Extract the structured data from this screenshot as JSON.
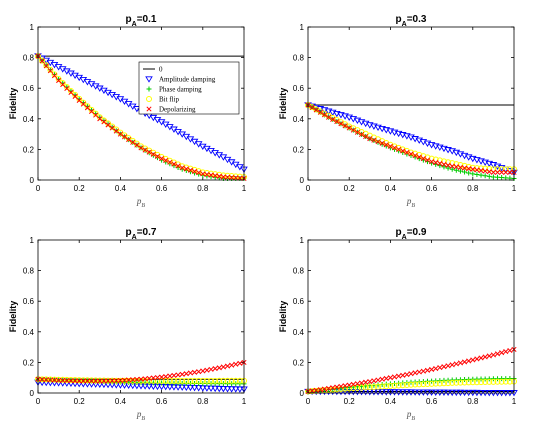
{
  "chart_data": [
    {
      "type": "scatter",
      "title_main": "p",
      "title_sub": "A",
      "title_rest": "=0.1",
      "xlabel_main": "p",
      "xlabel_sub": "B",
      "ylabel": "Fidelity",
      "xlim": [
        0,
        1
      ],
      "ylim": [
        0,
        1
      ],
      "xticks": [
        "0",
        "0.2",
        "0.4",
        "0.6",
        "0.8",
        "1"
      ],
      "yticks": [
        "0",
        "0.2",
        "0.4",
        "0.6",
        "0.8",
        "1"
      ],
      "legend_position": "top-right",
      "x": [
        0,
        0.1,
        0.2,
        0.3,
        0.4,
        0.5,
        0.6,
        0.7,
        0.8,
        0.9,
        1.0
      ],
      "series": [
        {
          "name": "0",
          "kind": "line",
          "color": "#000000",
          "values": [
            0.81,
            0.81,
            0.81,
            0.81,
            0.81,
            0.81,
            0.81,
            0.81,
            0.81,
            0.81,
            0.81
          ]
        },
        {
          "name": "Amplitude damping",
          "marker": "triangle-down",
          "color": "#0000ff",
          "values": [
            0.81,
            0.74,
            0.67,
            0.6,
            0.53,
            0.45,
            0.38,
            0.3,
            0.22,
            0.15,
            0.07
          ]
        },
        {
          "name": "Phase damping",
          "marker": "plus",
          "color": "#00cc00",
          "values": [
            0.81,
            0.66,
            0.53,
            0.41,
            0.3,
            0.21,
            0.13,
            0.07,
            0.03,
            0.01,
            0.01
          ]
        },
        {
          "name": "Bit flip",
          "marker": "circle",
          "color": "#ffff00",
          "values": [
            0.81,
            0.66,
            0.53,
            0.41,
            0.31,
            0.22,
            0.15,
            0.09,
            0.05,
            0.03,
            0.02
          ]
        },
        {
          "name": "Depolarizing",
          "marker": "x",
          "color": "#ff0000",
          "values": [
            0.81,
            0.65,
            0.52,
            0.4,
            0.3,
            0.21,
            0.14,
            0.08,
            0.04,
            0.02,
            0.01
          ]
        }
      ]
    },
    {
      "type": "scatter",
      "title_main": "p",
      "title_sub": "A",
      "title_rest": "=0.3",
      "xlabel_main": "p",
      "xlabel_sub": "B",
      "ylabel": "Fidelity",
      "xlim": [
        0,
        1
      ],
      "ylim": [
        0,
        1
      ],
      "xticks": [
        "0",
        "0.2",
        "0.4",
        "0.6",
        "0.8",
        "1"
      ],
      "yticks": [
        "0",
        "0.2",
        "0.4",
        "0.6",
        "0.8",
        "1"
      ],
      "x": [
        0,
        0.1,
        0.2,
        0.3,
        0.4,
        0.5,
        0.6,
        0.7,
        0.8,
        0.9,
        1.0
      ],
      "series": [
        {
          "name": "0",
          "kind": "line",
          "color": "#000000",
          "values": [
            0.49,
            0.49,
            0.49,
            0.49,
            0.49,
            0.49,
            0.49,
            0.49,
            0.49,
            0.49,
            0.49
          ]
        },
        {
          "name": "Amplitude damping",
          "marker": "triangle-down",
          "color": "#0000ff",
          "values": [
            0.49,
            0.45,
            0.41,
            0.36,
            0.32,
            0.28,
            0.23,
            0.19,
            0.14,
            0.1,
            0.05
          ]
        },
        {
          "name": "Phase damping",
          "marker": "plus",
          "color": "#00cc00",
          "values": [
            0.49,
            0.41,
            0.34,
            0.27,
            0.21,
            0.16,
            0.11,
            0.07,
            0.04,
            0.02,
            0.01
          ]
        },
        {
          "name": "Bit flip",
          "marker": "circle",
          "color": "#ffff00",
          "values": [
            0.49,
            0.42,
            0.35,
            0.29,
            0.23,
            0.18,
            0.14,
            0.11,
            0.08,
            0.07,
            0.07
          ]
        },
        {
          "name": "Depolarizing",
          "marker": "x",
          "color": "#ff0000",
          "values": [
            0.49,
            0.41,
            0.34,
            0.27,
            0.22,
            0.17,
            0.12,
            0.09,
            0.07,
            0.05,
            0.05
          ]
        }
      ]
    },
    {
      "type": "scatter",
      "title_main": "p",
      "title_sub": "A",
      "title_rest": "=0.7",
      "xlabel_main": "p",
      "xlabel_sub": "B",
      "ylabel": "Fidelity",
      "xlim": [
        0,
        1
      ],
      "ylim": [
        0,
        1
      ],
      "xticks": [
        "0",
        "0.2",
        "0.4",
        "0.6",
        "0.8",
        "1"
      ],
      "yticks": [
        "0",
        "0.2",
        "0.4",
        "0.6",
        "0.8",
        "1"
      ],
      "x": [
        0,
        0.1,
        0.2,
        0.3,
        0.4,
        0.5,
        0.6,
        0.7,
        0.8,
        0.9,
        1.0
      ],
      "series": [
        {
          "name": "0",
          "kind": "line",
          "color": "#000000",
          "values": [
            0.09,
            0.09,
            0.09,
            0.09,
            0.09,
            0.09,
            0.09,
            0.09,
            0.09,
            0.09,
            0.09
          ]
        },
        {
          "name": "Amplitude damping",
          "marker": "triangle-down",
          "color": "#0000ff",
          "values": [
            0.07,
            0.066,
            0.061,
            0.057,
            0.052,
            0.047,
            0.042,
            0.038,
            0.033,
            0.028,
            0.025
          ]
        },
        {
          "name": "Phase damping",
          "marker": "plus",
          "color": "#00cc00",
          "values": [
            0.09,
            0.085,
            0.08,
            0.076,
            0.072,
            0.068,
            0.065,
            0.063,
            0.062,
            0.061,
            0.06
          ]
        },
        {
          "name": "Bit flip",
          "marker": "circle",
          "color": "#ffff00",
          "values": [
            0.09,
            0.087,
            0.084,
            0.082,
            0.08,
            0.079,
            0.079,
            0.079,
            0.079,
            0.08,
            0.08
          ]
        },
        {
          "name": "Depolarizing",
          "marker": "x",
          "color": "#ff0000",
          "values": [
            0.09,
            0.083,
            0.079,
            0.078,
            0.082,
            0.09,
            0.104,
            0.122,
            0.144,
            0.17,
            0.2
          ]
        }
      ]
    },
    {
      "type": "scatter",
      "title_main": "p",
      "title_sub": "A",
      "title_rest": "=0.9",
      "xlabel_main": "p",
      "xlabel_sub": "B",
      "ylabel": "Fidelity",
      "xlim": [
        0,
        1
      ],
      "ylim": [
        0,
        1
      ],
      "xticks": [
        "0",
        "0.2",
        "0.4",
        "0.6",
        "0.8",
        "1"
      ],
      "yticks": [
        "0",
        "0.2",
        "0.4",
        "0.6",
        "0.8",
        "1"
      ],
      "x": [
        0,
        0.1,
        0.2,
        0.3,
        0.4,
        0.5,
        0.6,
        0.7,
        0.8,
        0.9,
        1.0
      ],
      "series": [
        {
          "name": "0",
          "kind": "line",
          "color": "#000000",
          "values": [
            0.01,
            0.01,
            0.01,
            0.01,
            0.01,
            0.01,
            0.01,
            0.01,
            0.01,
            0.01,
            0.01
          ]
        },
        {
          "name": "Amplitude damping",
          "marker": "triangle-down",
          "color": "#0000ff",
          "values": [
            0.01,
            0.01,
            0.009,
            0.008,
            0.007,
            0.006,
            0.005,
            0.004,
            0.003,
            0.002,
            0.002
          ]
        },
        {
          "name": "Phase damping",
          "marker": "plus",
          "color": "#00cc00",
          "values": [
            0.01,
            0.023,
            0.036,
            0.048,
            0.06,
            0.07,
            0.078,
            0.085,
            0.09,
            0.093,
            0.095
          ]
        },
        {
          "name": "Bit flip",
          "marker": "circle",
          "color": "#ffff00",
          "values": [
            0.01,
            0.02,
            0.03,
            0.038,
            0.046,
            0.054,
            0.06,
            0.066,
            0.07,
            0.073,
            0.075
          ]
        },
        {
          "name": "Depolarizing",
          "marker": "x",
          "color": "#ff0000",
          "values": [
            0.01,
            0.03,
            0.052,
            0.075,
            0.1,
            0.126,
            0.154,
            0.184,
            0.216,
            0.249,
            0.285
          ]
        }
      ]
    }
  ]
}
